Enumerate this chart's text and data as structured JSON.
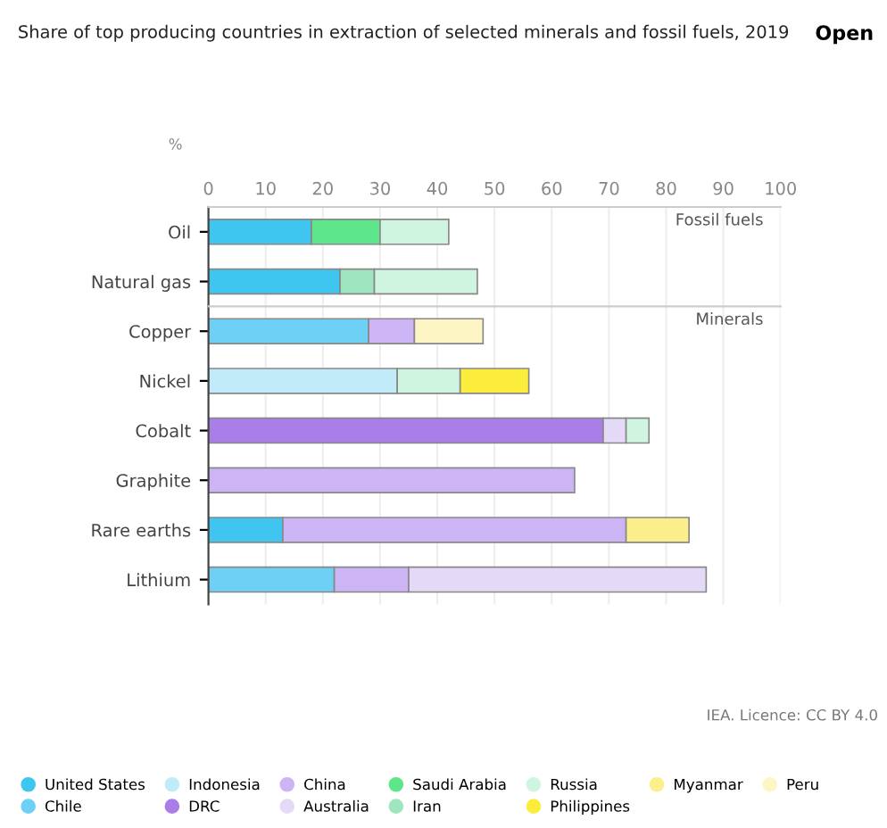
{
  "chart_data": [
    {
      "type": "bar",
      "orientation": "horizontal",
      "stacked": true,
      "title": "Share of top producing countries in extraction of selected minerals and fossil fuels, 2019",
      "xlabel": "%",
      "categories": [
        "Oil",
        "Natural gas"
      ],
      "series": [
        {
          "name": "United States",
          "color": "#3ec6f0",
          "values": [
            18,
            23
          ]
        },
        {
          "name": "Saudi Arabia",
          "color": "#5ee68a",
          "values": [
            12,
            null
          ]
        },
        {
          "name": "Iran",
          "color": "#9ee6c0",
          "values": [
            null,
            6
          ]
        },
        {
          "name": "Russia",
          "color": "#cff5e0",
          "values": [
            12,
            18
          ]
        }
      ],
      "xlim": [
        0,
        100
      ],
      "xticks": [
        0,
        10,
        20,
        30,
        40,
        50,
        60,
        70,
        80,
        90,
        100
      ],
      "grid": "x",
      "legend": "bottom",
      "annotations": [
        "Fossil fuels",
        "Open"
      ]
    },
    {
      "type": "bar",
      "orientation": "horizontal",
      "stacked": true,
      "categories": [
        "Copper",
        "Nickel",
        "Cobalt",
        "Graphite",
        "Rare earths",
        "Lithium"
      ],
      "series": [
        {
          "name": "United States",
          "color": "#3ec6f0",
          "values": [
            null,
            null,
            null,
            null,
            13,
            null
          ]
        },
        {
          "name": "Chile",
          "color": "#6fd0f5",
          "values": [
            28,
            null,
            null,
            null,
            null,
            22
          ]
        },
        {
          "name": "Indonesia",
          "color": "#c2ebfa",
          "values": [
            null,
            33,
            null,
            null,
            null,
            null
          ]
        },
        {
          "name": "DRC",
          "color": "#a97ee8",
          "values": [
            null,
            null,
            69,
            null,
            null,
            null
          ]
        },
        {
          "name": "China",
          "color": "#cdb5f5",
          "values": [
            8,
            null,
            null,
            64,
            60,
            13
          ]
        },
        {
          "name": "Australia",
          "color": "#e4daf7",
          "values": [
            null,
            null,
            4,
            null,
            null,
            52
          ]
        },
        {
          "name": "Saudi Arabia",
          "color": "#5ee68a",
          "values": [
            null,
            null,
            null,
            null,
            null,
            null
          ]
        },
        {
          "name": "Iran",
          "color": "#9ee6c0",
          "values": [
            null,
            null,
            null,
            null,
            null,
            null
          ]
        },
        {
          "name": "Russia",
          "color": "#cff5e0",
          "values": [
            null,
            11,
            4,
            null,
            null,
            null
          ]
        },
        {
          "name": "Philippines",
          "color": "#fcec3c",
          "values": [
            null,
            12,
            null,
            null,
            null,
            null
          ]
        },
        {
          "name": "Myanmar",
          "color": "#fbef8c",
          "values": [
            null,
            null,
            null,
            null,
            11,
            null
          ]
        },
        {
          "name": "Peru",
          "color": "#fdf6c4",
          "values": [
            12,
            null,
            null,
            null,
            null,
            null
          ]
        }
      ],
      "xlim": [
        0,
        100
      ],
      "xticks": [
        0,
        10,
        20,
        30,
        40,
        50,
        60,
        70,
        80,
        90,
        100
      ],
      "tick_labels": "y",
      "grid": "x",
      "legend": "bottom",
      "annotations": [
        "Minerals",
        "IEA. Licence: CC BY 4.0"
      ]
    }
  ]
}
